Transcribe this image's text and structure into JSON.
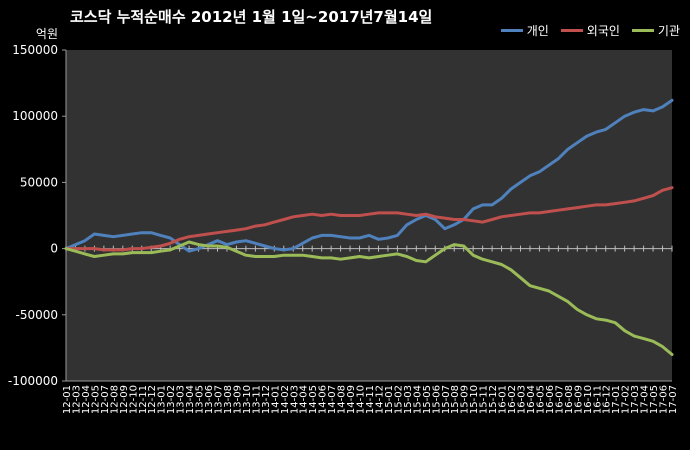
{
  "chart_data": {
    "type": "line",
    "title": "코스닥 누적순매수 2012년 1월 1일~2017년7월14일",
    "ylabel": "억원",
    "xlabel": "",
    "ylim": [
      -100000,
      150000
    ],
    "yticks": [
      "150000",
      "100000",
      "50000",
      "0",
      "-50000",
      "-100000"
    ],
    "ytick_values": [
      150000,
      100000,
      50000,
      0,
      -50000,
      -100000
    ],
    "categories": [
      "12-01",
      "12-03",
      "12-04",
      "12-05",
      "12-07",
      "12-08",
      "12-09",
      "12-10",
      "12-11",
      "12-12",
      "13-01",
      "13-02",
      "13-03",
      "13-04",
      "13-05",
      "13-06",
      "13-07",
      "13-08",
      "13-09",
      "13-10",
      "13-11",
      "13-12",
      "14-01",
      "14-02",
      "14-03",
      "14-04",
      "14-05",
      "14-06",
      "14-07",
      "14-08",
      "14-09",
      "14-10",
      "14-11",
      "14-12",
      "15-01",
      "15-02",
      "15-03",
      "15-04",
      "15-05",
      "15-06",
      "15-07",
      "15-08",
      "15-09",
      "15-10",
      "15-11",
      "15-12",
      "16-01",
      "16-02",
      "16-03",
      "16-04",
      "16-05",
      "16-06",
      "16-07",
      "16-08",
      "16-09",
      "16-10",
      "16-11",
      "16-12",
      "17-01",
      "17-02",
      "17-03",
      "17-04",
      "17-05",
      "17-06",
      "17-07"
    ],
    "series": [
      {
        "name": "개인",
        "color": "#4f81bd",
        "values": [
          0,
          3000,
          6000,
          11000,
          10000,
          9000,
          10000,
          11000,
          12000,
          12000,
          10000,
          8000,
          3000,
          -2000,
          0,
          3000,
          6000,
          3000,
          5000,
          6000,
          4000,
          2000,
          0,
          -1000,
          0,
          4000,
          8000,
          10000,
          10000,
          9000,
          8000,
          8000,
          10000,
          7000,
          8000,
          10000,
          18000,
          22000,
          25000,
          22000,
          15000,
          18000,
          22000,
          30000,
          33000,
          33000,
          38000,
          45000,
          50000,
          55000,
          58000,
          63000,
          68000,
          75000,
          80000,
          85000,
          88000,
          90000,
          95000,
          100000,
          103000,
          105000,
          104000,
          107000,
          112000
        ]
      },
      {
        "name": "외국인",
        "color": "#c0504d",
        "values": [
          0,
          0,
          0,
          0,
          -1000,
          -1000,
          -1000,
          0,
          0,
          1000,
          2000,
          4000,
          7000,
          9000,
          10000,
          11000,
          12000,
          13000,
          14000,
          15000,
          17000,
          18000,
          20000,
          22000,
          24000,
          25000,
          26000,
          25000,
          26000,
          25000,
          25000,
          25000,
          26000,
          27000,
          27000,
          27000,
          26000,
          25000,
          26000,
          24000,
          23000,
          22000,
          22000,
          21000,
          20000,
          22000,
          24000,
          25000,
          26000,
          27000,
          27000,
          28000,
          29000,
          30000,
          31000,
          32000,
          33000,
          33000,
          34000,
          35000,
          36000,
          38000,
          40000,
          44000,
          46000
        ]
      },
      {
        "name": "기관",
        "color": "#9bbb59",
        "values": [
          0,
          -2000,
          -4000,
          -6000,
          -5000,
          -4000,
          -4000,
          -3000,
          -3000,
          -3000,
          -2000,
          -1000,
          2000,
          5000,
          3000,
          2000,
          2000,
          1000,
          -2000,
          -5000,
          -6000,
          -6000,
          -6000,
          -5000,
          -5000,
          -5000,
          -6000,
          -7000,
          -7000,
          -8000,
          -7000,
          -6000,
          -7000,
          -6000,
          -5000,
          -4000,
          -6000,
          -9000,
          -10000,
          -5000,
          0,
          3000,
          2000,
          -5000,
          -8000,
          -10000,
          -12000,
          -16000,
          -22000,
          -28000,
          -30000,
          -32000,
          -36000,
          -40000,
          -46000,
          -50000,
          -53000,
          -54000,
          -56000,
          -62000,
          -66000,
          -68000,
          -70000,
          -74000,
          -80000
        ]
      }
    ]
  }
}
